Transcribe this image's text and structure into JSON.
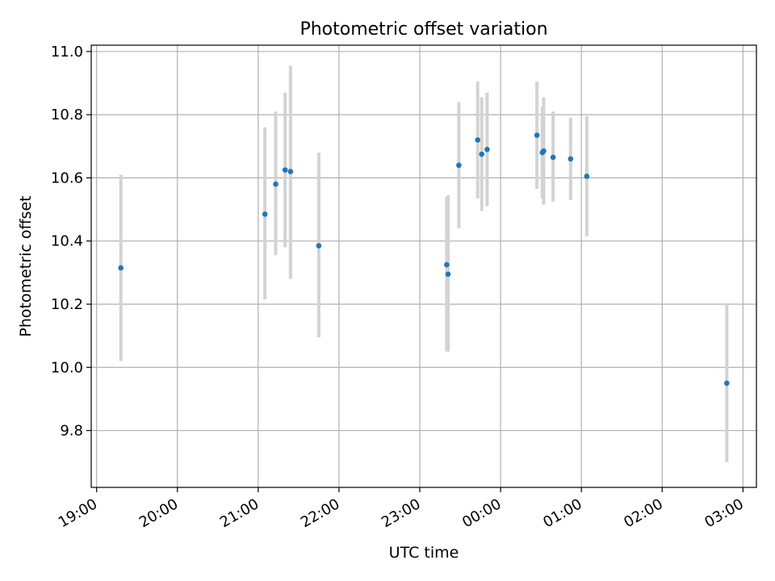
{
  "chart_data": {
    "type": "scatter",
    "title": "Photometric offset variation",
    "xlabel": "UTC time",
    "ylabel": "Photometric offset",
    "x_unit": "UTC time (hours, values ≥ 24 are after midnight)",
    "xlim": [
      "18:56",
      "03:10"
    ],
    "ylim": [
      9.62,
      11.02
    ],
    "grid": true,
    "x_ticks": [
      "19:00",
      "20:00",
      "21:00",
      "22:00",
      "23:00",
      "00:00",
      "01:00",
      "02:00",
      "03:00"
    ],
    "y_ticks": [
      "9.8",
      "10.0",
      "10.2",
      "10.4",
      "10.6",
      "10.8",
      "11.0"
    ],
    "points": [
      {
        "time": "19:18",
        "y": 10.315,
        "ylo": 10.02,
        "yhi": 10.61
      },
      {
        "time": "21:05",
        "y": 10.485,
        "ylo": 10.215,
        "yhi": 10.76
      },
      {
        "time": "21:13",
        "y": 10.58,
        "ylo": 10.355,
        "yhi": 10.81
      },
      {
        "time": "21:20",
        "y": 10.625,
        "ylo": 10.38,
        "yhi": 10.87
      },
      {
        "time": "21:24",
        "y": 10.62,
        "ylo": 10.28,
        "yhi": 10.955
      },
      {
        "time": "21:45",
        "y": 10.385,
        "ylo": 10.095,
        "yhi": 10.68
      },
      {
        "time": "23:20",
        "y": 10.325,
        "ylo": 10.05,
        "yhi": 10.54
      },
      {
        "time": "23:21",
        "y": 10.295,
        "ylo": 10.05,
        "yhi": 10.545
      },
      {
        "time": "23:29",
        "y": 10.64,
        "ylo": 10.44,
        "yhi": 10.84
      },
      {
        "time": "23:43",
        "y": 10.72,
        "ylo": 10.535,
        "yhi": 10.905
      },
      {
        "time": "23:46",
        "y": 10.675,
        "ylo": 10.495,
        "yhi": 10.855
      },
      {
        "time": "23:50",
        "y": 10.69,
        "ylo": 10.51,
        "yhi": 10.87
      },
      {
        "time": "00:27",
        "y": 10.735,
        "ylo": 10.565,
        "yhi": 10.905
      },
      {
        "time": "00:31",
        "y": 10.68,
        "ylo": 10.535,
        "yhi": 10.825
      },
      {
        "time": "00:32",
        "y": 10.685,
        "ylo": 10.515,
        "yhi": 10.855
      },
      {
        "time": "00:39",
        "y": 10.665,
        "ylo": 10.525,
        "yhi": 10.81
      },
      {
        "time": "00:52",
        "y": 10.66,
        "ylo": 10.53,
        "yhi": 10.79
      },
      {
        "time": "01:04",
        "y": 10.605,
        "ylo": 10.415,
        "yhi": 10.795
      },
      {
        "time": "02:48",
        "y": 9.95,
        "ylo": 9.7,
        "yhi": 10.2
      }
    ],
    "colors": {
      "point": "#1f77b4",
      "errorbar": "#d3d3d3",
      "grid": "#b0b0b0",
      "axes": "#000000"
    }
  }
}
